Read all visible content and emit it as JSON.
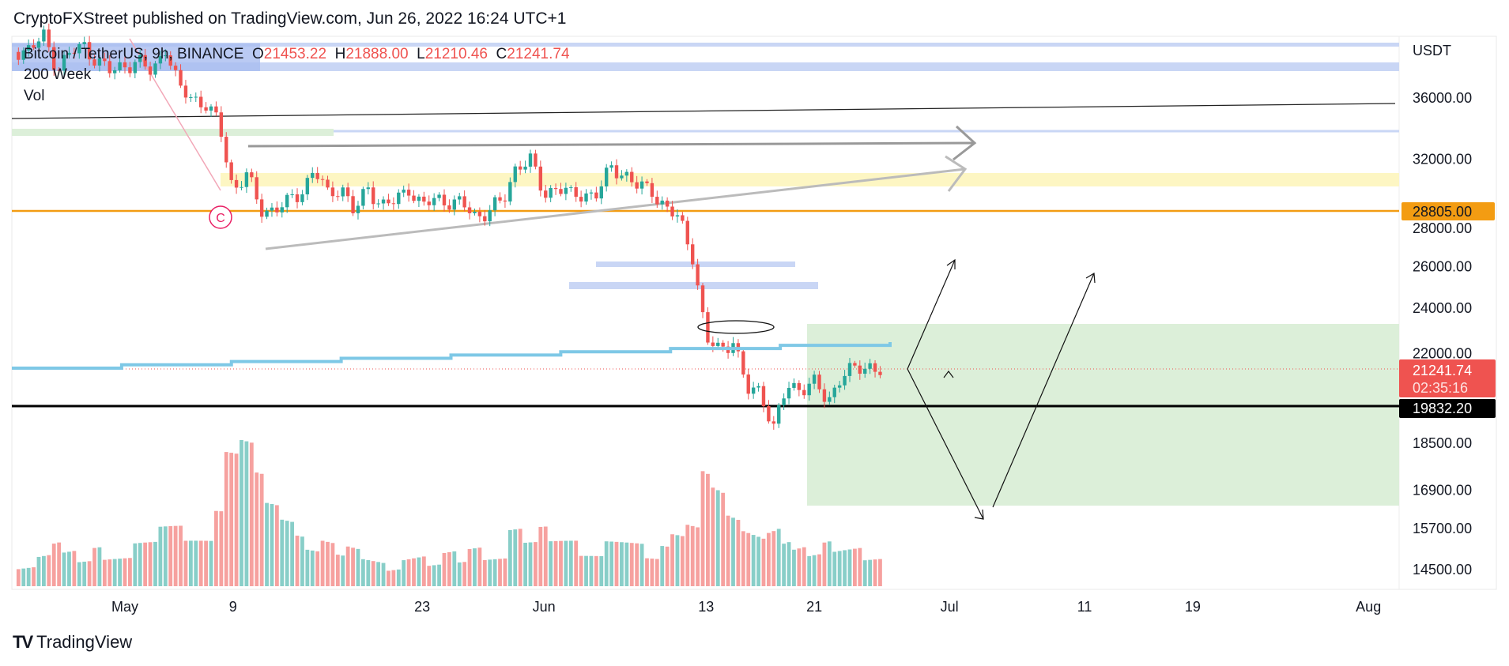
{
  "header": {
    "published": "CryptoFXStreet published on TradingView.com, Jun 26, 2022 16:24 UTC+1"
  },
  "legend": {
    "symbol": "Bitcoin / TetherUS, 9h, BINANCE",
    "o_label": "O",
    "o": "21453.22",
    "h_label": "H",
    "h": "21888.00",
    "l_label": "L",
    "l": "21210.46",
    "c_label": "C",
    "c": "21241.74",
    "indicator1": "200 Week",
    "indicator2": "Vol"
  },
  "footer": {
    "logo_mark": "TV",
    "logo_text": "TradingView"
  },
  "colors": {
    "up": "#26a69a",
    "down": "#ef5350",
    "ma": "#7ec8e6",
    "orange": "#f39c12",
    "green_zone": "#dcefd9",
    "yellow_zone": "#fdf6c3",
    "blue_zone": "#c9d6f5"
  },
  "chart_data": {
    "type": "candlestick",
    "title": "Bitcoin / TetherUS, 9h, BINANCE",
    "currency": "USDT",
    "y_scale": "log",
    "ylim": [
      14000,
      42000
    ],
    "y_ticks": [
      "36000.00",
      "32000.00",
      "28000.00",
      "26000.00",
      "24000.00",
      "22000.00",
      "18500.00",
      "16900.00",
      "15700.00",
      "14500.00"
    ],
    "y_tick_values": [
      36000,
      32000,
      28000,
      26000,
      24000,
      22000,
      18500,
      16900,
      15700,
      14500
    ],
    "x_ticks": [
      "May",
      "9",
      "23",
      "Jun",
      "13",
      "21",
      "Jul",
      "11",
      "19",
      "Aug"
    ],
    "x_tick_days": [
      0,
      8,
      22,
      31,
      43,
      51,
      61,
      71,
      79,
      92
    ],
    "start_day": -9,
    "daily_close": [
      39700,
      39400,
      39500,
      40400,
      38100,
      39200,
      39700,
      38600,
      37700,
      38400,
      38500,
      37700,
      39700,
      36500,
      36000,
      35500,
      34000,
      30100,
      31000,
      29000,
      29000,
      29300,
      30000,
      31300,
      29800,
      30400,
      28700,
      30300,
      29200,
      29400,
      30300,
      29100,
      29600,
      29500,
      29200,
      28600,
      29000,
      29400,
      31700,
      31800,
      29800,
      30400,
      29700,
      29900,
      29900,
      31400,
      31100,
      30200,
      30100,
      29100,
      28400,
      26600,
      22500,
      22100,
      22600,
      20400,
      20500,
      19000,
      20600,
      20600,
      20700,
      20000,
      21100,
      21230,
      21500,
      21241.74
    ],
    "daily_volume": [
      3,
      2,
      2,
      3,
      4,
      3,
      2,
      3,
      2,
      2,
      3,
      3,
      4,
      4,
      3,
      3,
      5,
      9,
      10,
      8,
      6,
      5,
      4,
      3,
      4,
      3,
      4,
      3,
      3,
      2,
      3,
      3,
      2,
      3,
      2,
      3,
      2,
      2,
      4,
      3,
      4,
      3,
      3,
      2,
      2,
      3,
      3,
      3,
      2,
      3,
      4,
      5,
      10,
      9,
      7,
      6,
      6,
      7,
      5,
      4,
      3,
      4,
      3,
      3,
      2,
      2
    ],
    "ma_200_week": {
      "name": "200 Week",
      "start": 21350,
      "end": 22450
    },
    "price_labels": {
      "orange_level": "28805.00",
      "last_price": "21241.74",
      "countdown": "02:35:16",
      "black_level": "19832.20"
    },
    "levels": {
      "orange": 28805,
      "black": 19832.2,
      "last": 21241.74
    },
    "annotation_circle": "C"
  }
}
